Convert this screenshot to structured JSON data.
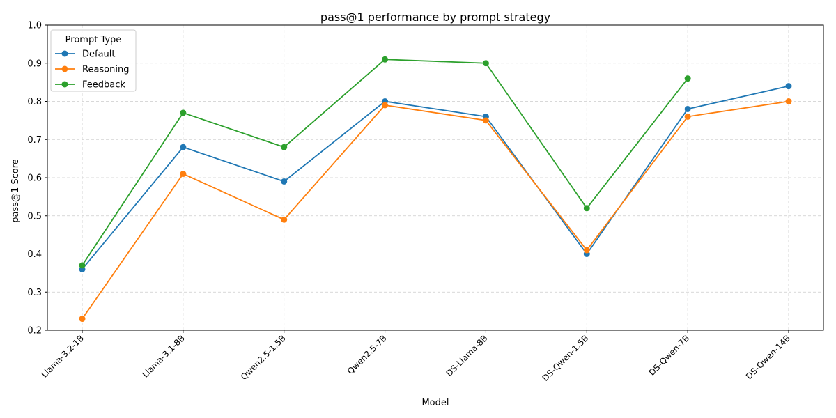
{
  "chart_data": {
    "type": "line",
    "title": "pass@1 performance by prompt strategy",
    "xlabel": "Model",
    "ylabel": "pass@1 Score",
    "categories": [
      "Llama-3.2-1B",
      "Llama-3.1-8B",
      "Qwen2.5-1.5B",
      "Qwen2.5-7B",
      "DS-Llama-8B",
      "DS-Qwen-1.5B",
      "DS-Qwen-7B",
      "DS-Qwen-14B"
    ],
    "ylim": [
      0.2,
      1.0
    ],
    "yticks": [
      "0.2",
      "0.3",
      "0.4",
      "0.5",
      "0.6",
      "0.7",
      "0.8",
      "0.9",
      "1.0"
    ],
    "grid": true,
    "legend": {
      "title": "Prompt Type",
      "placement": "top-left"
    },
    "series": [
      {
        "name": "Default",
        "color": "#1f77b4",
        "values": [
          0.36,
          0.68,
          0.59,
          0.8,
          0.76,
          0.4,
          0.78,
          0.84
        ]
      },
      {
        "name": "Reasoning",
        "color": "#ff7f0e",
        "values": [
          0.23,
          0.61,
          0.49,
          0.79,
          0.75,
          0.41,
          0.76,
          0.8
        ]
      },
      {
        "name": "Feedback",
        "color": "#2ca02c",
        "values": [
          0.37,
          0.77,
          0.68,
          0.91,
          0.9,
          0.52,
          0.86,
          null
        ]
      }
    ]
  }
}
